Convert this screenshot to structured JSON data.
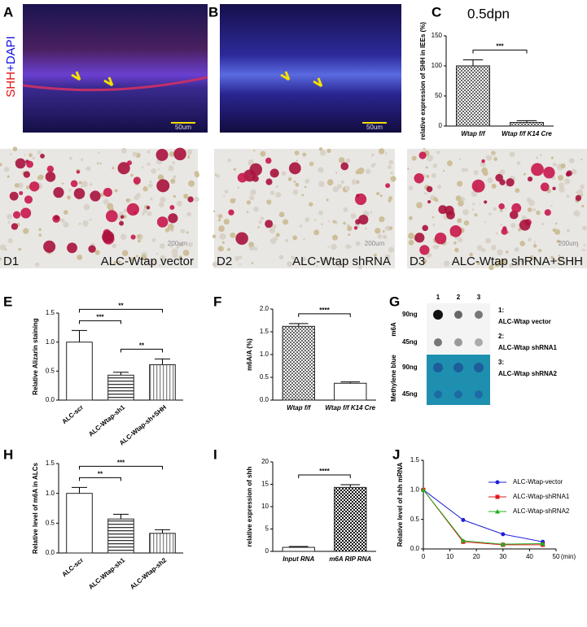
{
  "panel_labels": [
    "A",
    "B",
    "C",
    "D",
    "E",
    "F",
    "G",
    "H",
    "I",
    "J"
  ],
  "images": {
    "a": {
      "stain_red": "SHH",
      "stain_blue": "+DAPI",
      "scale": "50um"
    },
    "b": {
      "scale": "50um"
    },
    "d": [
      {
        "label": "D1",
        "caption": "ALC-Wtap vector",
        "scale": "200um"
      },
      {
        "label": "D2",
        "caption": "ALC-Wtap shRNA",
        "scale": "200um"
      },
      {
        "label": "D3",
        "caption": "ALC-Wtap shRNA+SHH",
        "scale": "200um"
      }
    ]
  },
  "blot": {
    "lanes": [
      "1",
      "2",
      "3"
    ],
    "sections": [
      "m6A",
      "Methylene blue"
    ],
    "rows": [
      "90ng",
      "45ng",
      "90ng",
      "45ng"
    ],
    "legend": [
      {
        "key": "1:",
        "name": "ALC-Wtap vector"
      },
      {
        "key": "2:",
        "name": "ALC-Wtap shRNA1"
      },
      {
        "key": "3:",
        "name": "ALC-Wtap shRNA2"
      }
    ]
  },
  "chart_data": [
    {
      "type": "bar",
      "title": "0.5dpn",
      "y_label": "relative expression of SHH in IEEs (%)",
      "categories": [
        "Wtap f/f",
        "Wtap f/f K14 Cre"
      ],
      "values": [
        100,
        6
      ],
      "errors": [
        10,
        3
      ],
      "ylim": [
        0,
        150
      ],
      "yticks": [
        0,
        50,
        100,
        150
      ],
      "fills": [
        "checker",
        "checker"
      ],
      "comparisons": [
        {
          "pair": [
            0,
            1
          ],
          "label": "***"
        }
      ]
    },
    {
      "type": "bar",
      "y_label": "Relative Alizarin staining",
      "categories": [
        "ALC-scr",
        "ALC-Wtap-sh1",
        "ALC-Wtap-sh+SHH"
      ],
      "values": [
        1.0,
        0.43,
        0.61
      ],
      "errors": [
        0.2,
        0.05,
        0.1
      ],
      "ylim": [
        0,
        1.5
      ],
      "yticks": [
        {
          "value": 0,
          "label": "0.0"
        },
        {
          "value": 0.5,
          "label": "0.5"
        },
        {
          "value": 1,
          "label": "1.0"
        },
        {
          "value": 1.5,
          "label": "1.5"
        }
      ],
      "fills": [
        "plain",
        "hstripe",
        "vstripe"
      ],
      "comparisons": [
        {
          "pair": [
            0,
            1
          ],
          "label": "***"
        },
        {
          "pair": [
            0,
            2
          ],
          "label": "**"
        },
        {
          "pair": [
            1,
            2
          ],
          "label": "**"
        }
      ]
    },
    {
      "type": "bar",
      "y_label": "m6A/A (%)",
      "categories": [
        "Wtap f/f",
        "Wtap f/f K14 Cre"
      ],
      "values": [
        1.62,
        0.37
      ],
      "errors": [
        0.06,
        0.03
      ],
      "ylim": [
        0,
        2
      ],
      "yticks": [
        {
          "value": 0,
          "label": "0.0"
        },
        {
          "value": 0.5,
          "label": "0.5"
        },
        {
          "value": 1,
          "label": "1.0"
        },
        {
          "value": 1.5,
          "label": "1.5"
        },
        {
          "value": 2,
          "label": "2.0"
        }
      ],
      "fills": [
        "checker",
        "plain"
      ],
      "comparisons": [
        {
          "pair": [
            0,
            1
          ],
          "label": "****"
        }
      ]
    },
    {
      "type": "bar",
      "y_label": "Relative level of m6A in ALCs",
      "categories": [
        "ALC-scr",
        "ALC-Wtap-sh1",
        "ALC-Wtap-sh2"
      ],
      "values": [
        1.0,
        0.57,
        0.33
      ],
      "errors": [
        0.1,
        0.08,
        0.06
      ],
      "ylim": [
        0,
        1.5
      ],
      "yticks": [
        {
          "value": 0,
          "label": "0.0"
        },
        {
          "value": 0.5,
          "label": "0.5"
        },
        {
          "value": 1,
          "label": "1.0"
        },
        {
          "value": 1.5,
          "label": "1.5"
        }
      ],
      "fills": [
        "plain",
        "hstripe",
        "vstripe"
      ],
      "comparisons": [
        {
          "pair": [
            0,
            1
          ],
          "label": "**"
        },
        {
          "pair": [
            0,
            2
          ],
          "label": "***"
        }
      ]
    },
    {
      "type": "bar",
      "y_label": "relative expression of shh",
      "categories": [
        "Input RNA",
        "m6A RIP RNA"
      ],
      "values": [
        0.9,
        14.3
      ],
      "errors": [
        0.2,
        0.6
      ],
      "ylim": [
        0,
        20
      ],
      "yticks": [
        0,
        5,
        10,
        15,
        20
      ],
      "fills": [
        "plain",
        "checker-dark"
      ],
      "comparisons": [
        {
          "pair": [
            0,
            1
          ],
          "label": "****"
        }
      ]
    },
    {
      "type": "line",
      "y_label": "Relative level of shh mRNA",
      "x_label": "(min)",
      "x": [
        0,
        15,
        30,
        45
      ],
      "xlim": [
        0,
        50
      ],
      "xticks": [
        0,
        10,
        20,
        30,
        40,
        50
      ],
      "ylim": [
        0,
        1.5
      ],
      "yticks": [
        {
          "value": 0,
          "label": "0.0"
        },
        {
          "value": 0.5,
          "label": "0.5"
        },
        {
          "value": 1,
          "label": "1.0"
        },
        {
          "value": 1.5,
          "label": "1.5"
        }
      ],
      "series": [
        {
          "name": "ALC-Wtap-vector",
          "color": "#1f1fd8",
          "marker": "circle",
          "values": [
            1.0,
            0.49,
            0.25,
            0.12
          ]
        },
        {
          "name": "ALC-Wtap-shRNA1",
          "color": "#e01818",
          "marker": "square",
          "values": [
            1.0,
            0.12,
            0.07,
            0.07
          ]
        },
        {
          "name": "ALC-Wtap-shRNA2",
          "color": "#20b020",
          "marker": "triangle",
          "values": [
            1.0,
            0.14,
            0.08,
            0.09
          ]
        }
      ]
    }
  ]
}
